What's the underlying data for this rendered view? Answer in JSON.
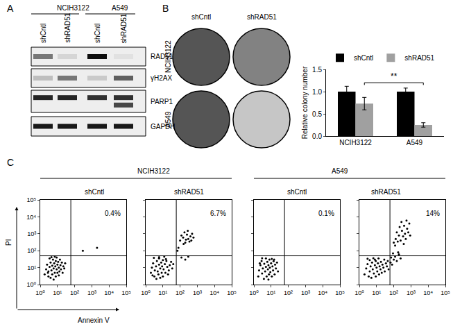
{
  "panel_labels": [
    "A",
    "B",
    "C"
  ],
  "blot": {
    "lanes": [
      "shCntl",
      "shRAD51",
      "shCntl",
      "shRAD51"
    ],
    "groups": [
      {
        "label": "NCIH3122",
        "lanes": [
          0,
          1
        ]
      },
      {
        "label": "A549",
        "lanes": [
          2,
          3
        ]
      }
    ],
    "rows": [
      {
        "label": "RAD51",
        "bands": [
          [
            0.5,
            0.1,
            0.95,
            0.05
          ]
        ]
      },
      {
        "label": "γH2AX",
        "bands": [
          [
            0.2,
            0.5,
            0.15,
            0.6
          ]
        ]
      },
      {
        "label": "PARP1",
        "bands": [
          [
            0.85,
            0.85,
            0.8,
            0.8
          ],
          [
            0,
            0,
            0,
            0.7
          ]
        ]
      },
      {
        "label": "GAPDH",
        "bands": [
          [
            0.9,
            0.9,
            0.9,
            0.9
          ]
        ]
      }
    ]
  },
  "colonies": {
    "columns": [
      "shCntl",
      "shRAD51"
    ],
    "rows": [
      "NCIH3122",
      "A549"
    ],
    "density": [
      [
        1.0,
        0.7
      ],
      [
        1.0,
        0.25
      ]
    ]
  },
  "flow": {
    "x_label": "Annexin V",
    "y_label": "PI",
    "groups": [
      {
        "label": "NCIH3122",
        "plots": [
          1,
          2
        ]
      },
      {
        "label": "A549",
        "plots": [
          3,
          4
        ]
      }
    ]
  },
  "chart_data": [
    {
      "type": "bar",
      "categories": [
        "NCIH3122",
        "A549"
      ],
      "series": [
        {
          "name": "shCntl",
          "color": "#000000",
          "values": [
            1.0,
            1.0
          ],
          "errors": [
            0.12,
            0.08
          ]
        },
        {
          "name": "shRAD51",
          "color": "#a0a0a0",
          "values": [
            0.73,
            0.25
          ],
          "errors": [
            0.14,
            0.05
          ]
        }
      ],
      "y_label": "Relative colony number",
      "ylim": [
        0,
        1.5
      ],
      "yticks": [
        {
          "value": 0,
          "label": "0.0"
        },
        {
          "value": 0.5,
          "label": "0.5"
        },
        {
          "value": 1,
          "label": "1.0"
        },
        {
          "value": 1.5,
          "label": "1.5"
        }
      ],
      "legend": "upper left",
      "grid": false,
      "significance": {
        "label": "**",
        "y": 1.2,
        "from": {
          "category": 0,
          "series": 1
        },
        "to": {
          "category": 1,
          "series": 1
        }
      }
    },
    {
      "type": "scatter",
      "title": "shCntl",
      "log": true,
      "grid": false,
      "color": "#000000",
      "marker": "dot",
      "xlim": [
        1,
        100000
      ],
      "ylim": [
        1,
        100000
      ],
      "xticks": [
        {
          "value": 1,
          "label": "10⁰"
        },
        {
          "value": 10,
          "label": "10¹"
        },
        {
          "value": 100,
          "label": "10²"
        },
        {
          "value": 1000,
          "label": "10³"
        },
        {
          "value": 10000,
          "label": "10⁴"
        },
        {
          "value": 100000,
          "label": "10⁵"
        }
      ],
      "yticks": [
        {
          "value": 1,
          "label": "10⁰"
        },
        {
          "value": 10,
          "label": "10¹"
        },
        {
          "value": 100,
          "label": "10²"
        },
        {
          "value": 1000,
          "label": "10³"
        },
        {
          "value": 10000,
          "label": "10⁴"
        },
        {
          "value": 100000,
          "label": "10⁵"
        }
      ],
      "gates": {
        "x": 60,
        "y": 50
      },
      "annotations": [
        "0.4%"
      ],
      "x": [
        1.8,
        2.2,
        2.5,
        3,
        3,
        3.5,
        4,
        4,
        4.5,
        5,
        5,
        5.5,
        6,
        6,
        6.5,
        7,
        7.5,
        8,
        8,
        9,
        9,
        10,
        10,
        11,
        12,
        12,
        13,
        14,
        15,
        16,
        18,
        20,
        22,
        25,
        28,
        3.5,
        2.8,
        7,
        4.5,
        300,
        2000
      ],
      "y": [
        4,
        8,
        15,
        3,
        6,
        11,
        2.5,
        20,
        7,
        4,
        13,
        30,
        9,
        2,
        18,
        5,
        12,
        25,
        3,
        8,
        40,
        15,
        5,
        22,
        10,
        3.5,
        6,
        30,
        14,
        8,
        20,
        5,
        12,
        9,
        18,
        35,
        5,
        45,
        42,
        100,
        150
      ]
    },
    {
      "type": "scatter",
      "title": "shRAD51",
      "log": true,
      "grid": false,
      "color": "#000000",
      "marker": "dot",
      "tick_labels": "x",
      "xlim": [
        1,
        100000
      ],
      "ylim": [
        1,
        100000
      ],
      "xticks": [
        {
          "value": 1,
          "label": "10⁰"
        },
        {
          "value": 10,
          "label": "10¹"
        },
        {
          "value": 100,
          "label": "10²"
        },
        {
          "value": 1000,
          "label": "10³"
        },
        {
          "value": 10000,
          "label": "10⁴"
        },
        {
          "value": 100000,
          "label": "10⁵"
        }
      ],
      "yticks": [
        {
          "value": 1,
          "label": "10⁰"
        },
        {
          "value": 10,
          "label": "10¹"
        },
        {
          "value": 100,
          "label": "10²"
        },
        {
          "value": 1000,
          "label": "10³"
        },
        {
          "value": 10000,
          "label": "10⁴"
        },
        {
          "value": 100000,
          "label": "10⁵"
        }
      ],
      "gates": {
        "x": 60,
        "y": 50
      },
      "annotations": [
        "6.7%"
      ],
      "x": [
        2,
        2.3,
        2.7,
        3.2,
        3.4,
        4,
        4.2,
        4.5,
        5,
        5.5,
        6,
        6,
        7,
        7,
        8,
        8.5,
        9,
        10,
        10,
        11,
        12,
        13,
        14,
        16,
        18,
        20,
        22,
        25,
        30,
        35,
        40,
        3,
        2.5,
        6,
        15,
        100,
        150,
        200,
        250,
        300,
        180,
        400,
        350,
        500,
        120,
        220,
        600,
        280,
        160,
        450,
        120,
        200,
        300,
        80,
        70
      ],
      "y": [
        5,
        10,
        18,
        3,
        7,
        12,
        2.2,
        25,
        6,
        4,
        15,
        35,
        9,
        2.5,
        20,
        5,
        12,
        28,
        3,
        8,
        45,
        16,
        5,
        25,
        11,
        4,
        7,
        14,
        22,
        9,
        16,
        38,
        3.5,
        42,
        32,
        400,
        600,
        300,
        900,
        500,
        1200,
        700,
        350,
        1000,
        800,
        450,
        600,
        1500,
        250,
        400,
        40,
        30,
        45,
        150,
        100
      ]
    },
    {
      "type": "scatter",
      "title": "shCntl",
      "log": true,
      "grid": false,
      "color": "#000000",
      "marker": "dot",
      "tick_labels": "x",
      "xlim": [
        1,
        100000
      ],
      "ylim": [
        1,
        100000
      ],
      "xticks": [
        {
          "value": 1,
          "label": "10⁰"
        },
        {
          "value": 10,
          "label": "10¹"
        },
        {
          "value": 100,
          "label": "10²"
        },
        {
          "value": 1000,
          "label": "10³"
        },
        {
          "value": 10000,
          "label": "10⁴"
        },
        {
          "value": 100000,
          "label": "10⁵"
        }
      ],
      "yticks": [
        {
          "value": 1,
          "label": "10⁰"
        },
        {
          "value": 10,
          "label": "10¹"
        },
        {
          "value": 100,
          "label": "10²"
        },
        {
          "value": 1000,
          "label": "10³"
        },
        {
          "value": 10000,
          "label": "10⁴"
        },
        {
          "value": 100000,
          "label": "10⁵"
        }
      ],
      "gates": {
        "x": 60,
        "y": 50
      },
      "annotations": [
        "0.1%"
      ],
      "x": [
        1.8,
        2,
        2.4,
        2.8,
        3,
        3.3,
        3.8,
        4,
        4.5,
        5,
        5,
        5.5,
        6,
        6.5,
        7,
        7.5,
        8,
        8.5,
        9,
        10,
        11,
        11,
        12,
        13,
        14,
        16,
        17,
        19,
        22,
        25,
        3,
        7,
        2.2,
        15
      ],
      "y": [
        3,
        7,
        14,
        25,
        4.5,
        9,
        2.2,
        17,
        6,
        11,
        35,
        3,
        22,
        8,
        14,
        4,
        30,
        10,
        5.5,
        18,
        3,
        33,
        12,
        7,
        24,
        4,
        15,
        9,
        20,
        6,
        36,
        2,
        18,
        30
      ]
    },
    {
      "type": "scatter",
      "title": "shRAD51",
      "log": true,
      "grid": false,
      "color": "#000000",
      "marker": "dot",
      "tick_labels": "x",
      "xlim": [
        1,
        100000
      ],
      "ylim": [
        1,
        100000
      ],
      "xticks": [
        {
          "value": 1,
          "label": "10⁰"
        },
        {
          "value": 10,
          "label": "10¹"
        },
        {
          "value": 100,
          "label": "10²"
        },
        {
          "value": 1000,
          "label": "10³"
        },
        {
          "value": 10000,
          "label": "10⁴"
        },
        {
          "value": 100000,
          "label": "10⁵"
        }
      ],
      "yticks": [
        {
          "value": 1,
          "label": "10⁰"
        },
        {
          "value": 10,
          "label": "10¹"
        },
        {
          "value": 100,
          "label": "10²"
        },
        {
          "value": 1000,
          "label": "10³"
        },
        {
          "value": 10000,
          "label": "10⁴"
        },
        {
          "value": 100000,
          "label": "10⁵"
        }
      ],
      "gates": {
        "x": 60,
        "y": 50
      },
      "annotations": [
        "14%"
      ],
      "x": [
        2,
        2.5,
        3,
        3.5,
        4,
        4,
        4.5,
        5,
        5.5,
        6,
        6.5,
        7,
        8,
        9,
        9,
        10,
        11,
        12,
        13,
        14,
        15,
        17,
        18,
        20,
        22,
        25,
        28,
        30,
        35,
        40,
        45,
        50,
        3,
        8,
        65,
        70,
        80,
        100,
        120,
        150,
        200,
        250,
        180,
        90,
        100,
        130,
        150,
        200,
        220,
        250,
        300,
        350,
        400,
        450,
        500,
        600,
        700,
        800,
        900,
        120,
        170,
        280,
        550,
        380
      ],
      "y": [
        4,
        9,
        16,
        3,
        6,
        28,
        12,
        2.5,
        20,
        8,
        36,
        4.5,
        14,
        25,
        3,
        10,
        6,
        18,
        35,
        4,
        12,
        8,
        22,
        5,
        15,
        10,
        30,
        6,
        18,
        12,
        25,
        8,
        34,
        30,
        20,
        40,
        15,
        30,
        45,
        25,
        60,
        35,
        80,
        70,
        300,
        500,
        1200,
        800,
        2500,
        400,
        1500,
        700,
        3000,
        1000,
        500,
        2000,
        1200,
        4000,
        800,
        200,
        350,
        5000,
        6000,
        250
      ]
    }
  ]
}
